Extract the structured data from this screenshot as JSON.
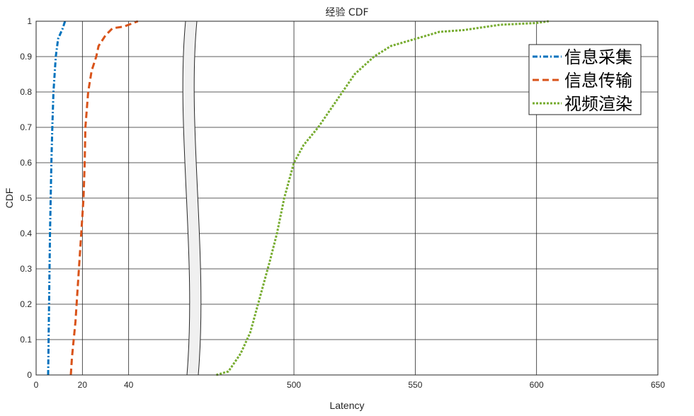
{
  "chart_data": {
    "type": "line",
    "title": "经验 CDF",
    "xlabel": "Latency",
    "ylabel": "CDF",
    "ylim": [
      0,
      1
    ],
    "grid": true,
    "legend_position": "top-right",
    "x_axis_break": {
      "left_range": [
        0,
        60
      ],
      "right_range": [
        460,
        650
      ]
    },
    "xticks": [
      0,
      20,
      40,
      500,
      550,
      600,
      650
    ],
    "xtick_labels": [
      "0",
      "20",
      "40",
      "500",
      "550",
      "600",
      "650"
    ],
    "yticks": [
      0,
      0.1,
      0.2,
      0.3,
      0.4,
      0.5,
      0.6,
      0.7,
      0.8,
      0.9,
      1
    ],
    "ytick_labels": [
      "0",
      "0.1",
      "0.2",
      "0.3",
      "0.4",
      "0.5",
      "0.6",
      "0.7",
      "0.8",
      "0.9",
      "1"
    ],
    "series": [
      {
        "name": "信息采集",
        "color": "#0072BD",
        "dash": "dash-dot",
        "x": [
          5.2,
          5.4,
          5.6,
          5.8,
          6.0,
          6.3,
          6.6,
          7.0,
          7.5,
          8.5,
          9.5,
          11.5,
          12.5
        ],
        "y": [
          0,
          0.1,
          0.2,
          0.3,
          0.4,
          0.5,
          0.6,
          0.7,
          0.8,
          0.9,
          0.95,
          0.98,
          1.0
        ]
      },
      {
        "name": "信息传输",
        "color": "#D95319",
        "dash": "dashed",
        "x": [
          15,
          15.5,
          17,
          18.5,
          19.5,
          20.5,
          21,
          21.3,
          22.5,
          24,
          26,
          27,
          30,
          33,
          38,
          44
        ],
        "y": [
          0,
          0.05,
          0.15,
          0.3,
          0.4,
          0.5,
          0.6,
          0.7,
          0.8,
          0.86,
          0.9,
          0.93,
          0.96,
          0.98,
          0.985,
          1.0
        ]
      },
      {
        "name": "视频渲染",
        "color": "#77AC30",
        "dash": "dotted",
        "x": [
          468,
          473,
          478,
          482,
          486,
          490,
          493,
          496,
          500,
          504,
          510,
          515,
          520,
          525,
          533,
          540,
          550,
          560,
          570,
          585,
          600,
          605
        ],
        "y": [
          0,
          0.01,
          0.06,
          0.12,
          0.22,
          0.32,
          0.4,
          0.5,
          0.6,
          0.65,
          0.7,
          0.75,
          0.8,
          0.85,
          0.9,
          0.93,
          0.95,
          0.97,
          0.975,
          0.99,
          0.995,
          1.0
        ]
      }
    ]
  }
}
